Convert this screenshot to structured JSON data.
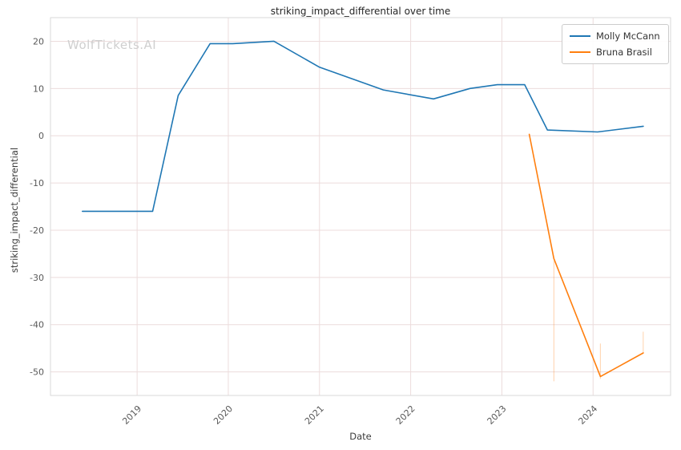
{
  "watermark": "WolfTickets.AI",
  "legend": {
    "entries": [
      "Molly McCann",
      "Bruna Brasil"
    ]
  },
  "chart_data": {
    "type": "line",
    "title": "striking_impact_differential over time",
    "xlabel": "Date",
    "ylabel": "striking_impact_differential",
    "xlim": [
      2018.05,
      2024.85
    ],
    "ylim": [
      -55,
      25
    ],
    "xticks": [
      2019,
      2020,
      2021,
      2022,
      2023,
      2024
    ],
    "yticks": [
      20,
      10,
      0,
      -10,
      -20,
      -30,
      -40,
      -50
    ],
    "grid": true,
    "grid_color": "#ecdcdc",
    "spine_color": "#d9d9d9",
    "legend_position": "upper right",
    "series": [
      {
        "name": "Molly McCann",
        "color": "#1f77b4",
        "x": [
          2018.4,
          2019.17,
          2019.45,
          2019.8,
          2020.05,
          2020.5,
          2021.0,
          2021.7,
          2022.25,
          2022.65,
          2022.95,
          2023.25,
          2023.5,
          2024.05,
          2024.55
        ],
        "y": [
          -16,
          -16,
          8.5,
          19.5,
          19.5,
          20,
          14.5,
          9.7,
          7.8,
          10.0,
          10.8,
          10.8,
          1.2,
          0.8,
          2.0
        ]
      },
      {
        "name": "Bruna Brasil",
        "color": "#ff7f0e",
        "x": [
          2023.3,
          2023.57,
          2024.08,
          2024.55
        ],
        "y": [
          0.3,
          -26,
          -51,
          -46
        ]
      }
    ],
    "error_lines": [
      {
        "x": 2023.57,
        "y0": -52.0,
        "y1": -26.5,
        "color": "#ff7f0e"
      },
      {
        "x": 2024.08,
        "y0": -51.5,
        "y1": -44.0,
        "color": "#ff7f0e"
      },
      {
        "x": 2024.55,
        "y0": -46.0,
        "y1": -41.5,
        "color": "#ff7f0e"
      }
    ]
  }
}
